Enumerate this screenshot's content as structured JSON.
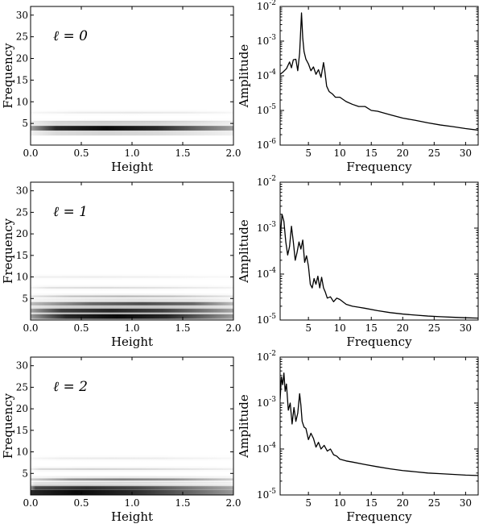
{
  "chart_data": [
    {
      "type": "heatmap",
      "label": "ℓ = 0",
      "xlabel": "Height",
      "ylabel": "Frequency",
      "xlim": [
        0.0,
        2.0
      ],
      "ylim": [
        0,
        32
      ],
      "xticks": [
        "0.0",
        "0.5",
        "1.0",
        "1.5",
        "2.0"
      ],
      "yticks": [
        "5",
        "10",
        "15",
        "20",
        "25",
        "30"
      ],
      "bands": [
        {
          "freq": 3.9,
          "intensity": 0.95,
          "x_start": 0.0,
          "x_end": 2.0,
          "x_peak": 0.75
        },
        {
          "freq": 7.5,
          "intensity": 0.08,
          "x_start": 0.0,
          "x_end": 2.0,
          "x_peak": 1.0
        },
        {
          "freq": 5.5,
          "intensity": 0.05,
          "x_start": 0.0,
          "x_end": 2.0,
          "x_peak": 1.2
        }
      ]
    },
    {
      "type": "line",
      "xlabel": "Frequency",
      "ylabel": "Amplitude",
      "yscale": "log",
      "xlim": [
        0.5,
        32
      ],
      "ylim_exp": [
        -6,
        -2
      ],
      "xticks": [
        "5",
        "10",
        "15",
        "20",
        "25",
        "30"
      ],
      "yticks_exp": [
        "-6",
        "-5",
        "-4",
        "-3",
        "-2"
      ],
      "x": [
        0.5,
        1.0,
        1.5,
        2.0,
        2.3,
        2.6,
        3.0,
        3.3,
        3.6,
        3.9,
        4.1,
        4.3,
        4.6,
        5.0,
        5.4,
        5.8,
        6.2,
        6.6,
        7.0,
        7.4,
        7.6,
        7.9,
        8.3,
        8.8,
        9.3,
        10.0,
        11.0,
        12.0,
        13.0,
        14.0,
        15.0,
        16.0,
        18.0,
        20.0,
        22.0,
        24.0,
        26.0,
        28.0,
        30.0,
        32.0
      ],
      "y": [
        0.00011,
        0.00013,
        0.00016,
        0.00025,
        0.00017,
        0.00029,
        0.0003,
        0.00014,
        0.00045,
        0.0065,
        0.0012,
        0.0005,
        0.0003,
        0.00022,
        0.00014,
        0.00018,
        0.00011,
        0.00015,
        9e-05,
        0.00024,
        0.00014,
        5e-05,
        3.5e-05,
        3e-05,
        2.4e-05,
        2.4e-05,
        1.8e-05,
        1.5e-05,
        1.3e-05,
        1.3e-05,
        1e-05,
        9.5e-06,
        7.5e-06,
        6e-06,
        5.2e-06,
        4.4e-06,
        3.8e-06,
        3.4e-06,
        3e-06,
        2.7e-06
      ]
    },
    {
      "type": "heatmap",
      "label": "ℓ = 1",
      "xlabel": "Height",
      "ylabel": "Frequency",
      "xlim": [
        0.0,
        2.0
      ],
      "ylim": [
        0,
        32
      ],
      "xticks": [
        "0.0",
        "0.5",
        "1.0",
        "1.5",
        "2.0"
      ],
      "yticks": [
        "5",
        "10",
        "15",
        "20",
        "25",
        "30"
      ],
      "bands": [
        {
          "freq": 0.8,
          "intensity": 0.95,
          "x_start": 0.0,
          "x_end": 2.0,
          "x_peak": 0.85
        },
        {
          "freq": 2.2,
          "intensity": 0.8,
          "x_start": 0.0,
          "x_end": 2.0,
          "x_peak": 0.8
        },
        {
          "freq": 3.8,
          "intensity": 0.65,
          "x_start": 0.0,
          "x_end": 2.0,
          "x_peak": 1.1
        },
        {
          "freq": 5.5,
          "intensity": 0.25,
          "x_start": 0.0,
          "x_end": 2.0,
          "x_peak": 0.9
        },
        {
          "freq": 7.5,
          "intensity": 0.12,
          "x_start": 0.0,
          "x_end": 2.0,
          "x_peak": 0.7
        },
        {
          "freq": 10.0,
          "intensity": 0.06,
          "x_start": 0.0,
          "x_end": 2.0,
          "x_peak": 0.6
        }
      ]
    },
    {
      "type": "line",
      "xlabel": "Frequency",
      "ylabel": "Amplitude",
      "yscale": "log",
      "xlim": [
        0.5,
        32
      ],
      "ylim_exp": [
        -5,
        -2
      ],
      "xticks": [
        "5",
        "10",
        "15",
        "20",
        "25",
        "30"
      ],
      "yticks_exp": [
        "-5",
        "-4",
        "-3",
        "-2"
      ],
      "x": [
        0.5,
        0.8,
        1.1,
        1.4,
        1.7,
        2.0,
        2.3,
        2.6,
        2.9,
        3.2,
        3.5,
        3.8,
        4.1,
        4.4,
        4.7,
        5.0,
        5.3,
        5.6,
        5.9,
        6.2,
        6.5,
        6.8,
        7.1,
        7.4,
        7.7,
        8.0,
        8.5,
        9.0,
        9.5,
        10.0,
        11.0,
        12.0,
        13.0,
        14.0,
        16.0,
        18.0,
        20.0,
        22.0,
        24.0,
        26.0,
        28.0,
        30.0,
        32.0
      ],
      "y": [
        0.0006,
        0.002,
        0.0014,
        0.0005,
        0.00026,
        0.0004,
        0.0011,
        0.0005,
        0.0002,
        0.0003,
        0.0005,
        0.00035,
        0.00055,
        0.00018,
        0.00025,
        0.00015,
        6e-05,
        5e-05,
        8e-05,
        6e-05,
        9e-05,
        5e-05,
        8.5e-05,
        5e-05,
        4e-05,
        3e-05,
        3.2e-05,
        2.5e-05,
        3e-05,
        2.8e-05,
        2.2e-05,
        2e-05,
        1.9e-05,
        1.8e-05,
        1.6e-05,
        1.45e-05,
        1.35e-05,
        1.28e-05,
        1.22e-05,
        1.18e-05,
        1.15e-05,
        1.12e-05,
        1.1e-05
      ]
    },
    {
      "type": "heatmap",
      "label": "ℓ = 2",
      "xlabel": "Height",
      "ylabel": "Frequency",
      "xlim": [
        0.0,
        2.0
      ],
      "ylim": [
        0,
        32
      ],
      "xticks": [
        "0.0",
        "0.5",
        "1.0",
        "1.5",
        "2.0"
      ],
      "yticks": [
        "5",
        "10",
        "15",
        "20",
        "25",
        "30"
      ],
      "bands": [
        {
          "freq": 0.6,
          "intensity": 0.95,
          "x_start": 0.0,
          "x_end": 2.0,
          "x_peak": 0.45
        },
        {
          "freq": 1.6,
          "intensity": 0.75,
          "x_start": 0.0,
          "x_end": 2.0,
          "x_peak": 0.55
        },
        {
          "freq": 3.6,
          "intensity": 0.45,
          "x_start": 0.0,
          "x_end": 2.0,
          "x_peak": 0.9
        },
        {
          "freq": 6.0,
          "intensity": 0.15,
          "x_start": 0.0,
          "x_end": 2.0,
          "x_peak": 0.6
        },
        {
          "freq": 8.5,
          "intensity": 0.07,
          "x_start": 0.0,
          "x_end": 2.0,
          "x_peak": 0.8
        }
      ]
    },
    {
      "type": "line",
      "xlabel": "Frequency",
      "ylabel": "Amplitude",
      "yscale": "log",
      "xlim": [
        0.5,
        32
      ],
      "ylim_exp": [
        -5,
        -2
      ],
      "xticks": [
        "5",
        "10",
        "15",
        "20",
        "25",
        "30"
      ],
      "yticks_exp": [
        "-5",
        "-4",
        "-3",
        "-2"
      ],
      "x": [
        0.5,
        0.7,
        0.9,
        1.1,
        1.3,
        1.5,
        1.8,
        2.1,
        2.4,
        2.7,
        3.0,
        3.3,
        3.6,
        3.8,
        4.0,
        4.3,
        4.6,
        5.0,
        5.4,
        5.8,
        6.2,
        6.6,
        7.0,
        7.5,
        8.0,
        8.5,
        9.0,
        9.5,
        10.0,
        11.0,
        12.0,
        14.0,
        16.0,
        18.0,
        20.0,
        22.0,
        24.0,
        26.0,
        28.0,
        30.0,
        32.0
      ],
      "y": [
        0.0012,
        0.0037,
        0.0025,
        0.0045,
        0.0018,
        0.0026,
        0.0007,
        0.001,
        0.00035,
        0.0008,
        0.0004,
        0.0006,
        0.0016,
        0.0009,
        0.0004,
        0.0003,
        0.00028,
        0.00016,
        0.00022,
        0.00017,
        0.00011,
        0.00014,
        0.0001,
        0.00012,
        9e-05,
        0.0001,
        7.5e-05,
        7e-05,
        6e-05,
        5.5e-05,
        5.2e-05,
        4.6e-05,
        4.1e-05,
        3.7e-05,
        3.4e-05,
        3.2e-05,
        3e-05,
        2.9e-05,
        2.8e-05,
        2.7e-05,
        2.65e-05
      ]
    }
  ]
}
